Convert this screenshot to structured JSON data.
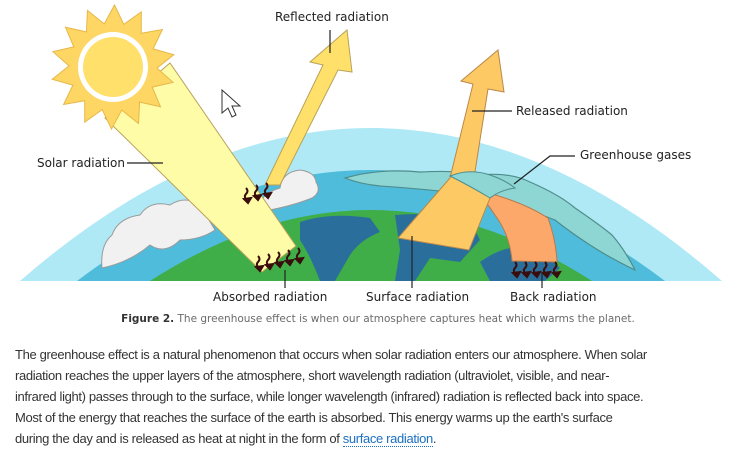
{
  "figure": {
    "labels": {
      "reflected": "Reflected radiation",
      "released": "Released radiation",
      "greenhouse": "Greenhouse gases",
      "solar": "Solar radiation",
      "absorbed": "Absorbed radiation",
      "surface": "Surface radiation",
      "back": "Back radiation"
    },
    "caption_prefix": "Figure 2.",
    "caption_text": "The greenhouse effect is when our atmosphere captures heat which warms the planet."
  },
  "paragraph": {
    "lines": [
      "The greenhouse effect is a natural phenomenon that occurs when solar radiation enters our atmosphere. When solar",
      "radiation reaches the upper layers of the atmosphere, short wavelength radiation (ultraviolet, visible, and near-",
      "infrared light) passes through to the surface, while longer wavelength (infrared) radiation is reflected back into space.",
      "Most of the energy that reaches the surface of the earth is absorbed. This energy warms up the earth's surface",
      "during the day and is released as heat at night in the form of "
    ],
    "link_text": "surface radiation",
    "end": "."
  },
  "colors": {
    "atmosphere": "#aee9f5",
    "sky_blue": "#4fbcdc",
    "land": "#3fae49",
    "ocean": "#2a6f9b",
    "sun": "#fdd663",
    "solar_beam": "#fffca8",
    "released_arrow": "#fdc965",
    "greenhouse": "#8ed6d4",
    "back_radiation": "#fca86b",
    "link": "#1a6fc2"
  }
}
